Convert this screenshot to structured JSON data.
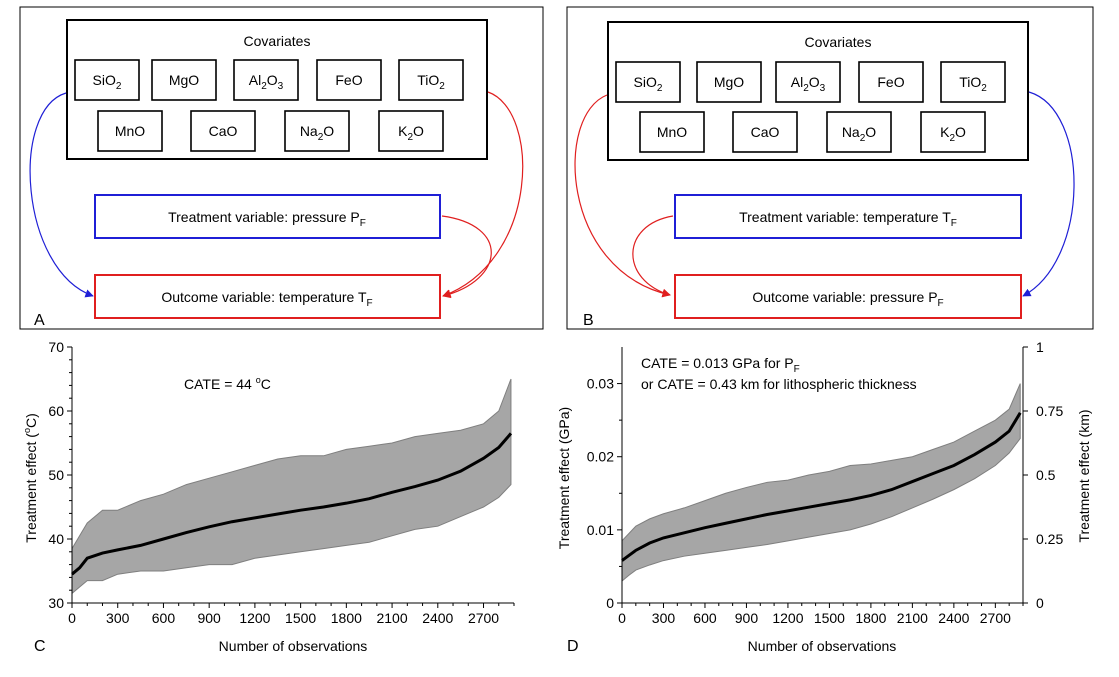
{
  "panel_a": {
    "letter": "A",
    "covariates_title": "Covariates",
    "covariates_row1": [
      {
        "base": "SiO",
        "sub": "2",
        "tail": ""
      },
      {
        "base": "MgO",
        "sub": "",
        "tail": ""
      },
      {
        "base": "Al",
        "sub": "2",
        "tail": "O",
        "sub2": "3"
      },
      {
        "base": "FeO",
        "sub": "",
        "tail": ""
      },
      {
        "base": "TiO",
        "sub": "2",
        "tail": ""
      }
    ],
    "covariates_row2": [
      {
        "base": "MnO",
        "sub": "",
        "tail": ""
      },
      {
        "base": "CaO",
        "sub": "",
        "tail": ""
      },
      {
        "base": "Na",
        "sub": "2",
        "tail": "O"
      },
      {
        "base": "K",
        "sub": "2",
        "tail": "O"
      }
    ],
    "treatment": {
      "text": "Treatment variable: pressure P",
      "sub": "F"
    },
    "outcome": {
      "text": "Outcome variable: temperature T",
      "sub": "F"
    }
  },
  "panel_b": {
    "letter": "B",
    "covariates_title": "Covariates",
    "treatment": {
      "text": "Treatment variable: temperature T",
      "sub": "F"
    },
    "outcome": {
      "text": "Outcome variable: pressure P",
      "sub": "F"
    }
  },
  "colors": {
    "blue": "#1f1fd6",
    "red": "#e01f1f",
    "band": "#a6a6a6",
    "band_edge": "#7f7f7f"
  },
  "chart_data": [
    {
      "type": "area",
      "panel_letter": "C",
      "annotation_prefix": "CATE = 44 ",
      "annotation_degree": "o",
      "annotation_unit": "C",
      "xlabel": "Number of observations",
      "ylabel_prefix": "Treatment effect (",
      "ylabel_degree": "o",
      "ylabel_suffix": "C)",
      "xlim": [
        0,
        2900
      ],
      "ylim": [
        30,
        70
      ],
      "xticks": [
        0,
        300,
        600,
        900,
        1200,
        1500,
        1800,
        2100,
        2400,
        2700
      ],
      "yticks": [
        30,
        40,
        50,
        60,
        70
      ],
      "series": [
        {
          "x": [
            0,
            50,
            100,
            200,
            300,
            450,
            600,
            750,
            900,
            1050,
            1200,
            1350,
            1500,
            1650,
            1800,
            1950,
            2100,
            2250,
            2400,
            2550,
            2700,
            2800,
            2880
          ],
          "values": [
            34.5,
            35.5,
            37,
            37.8,
            38.3,
            39,
            40,
            41,
            41.9,
            42.7,
            43.3,
            43.9,
            44.5,
            45.0,
            45.6,
            46.3,
            47.3,
            48.2,
            49.2,
            50.6,
            52.6,
            54.3,
            56.5
          ],
          "upper": [
            38.5,
            40.5,
            42.5,
            44.5,
            44.5,
            46,
            47,
            48.5,
            49.5,
            50.5,
            51.5,
            52.5,
            53,
            53,
            54,
            54.5,
            55,
            56,
            56.5,
            57,
            58,
            60,
            65
          ],
          "lower": [
            31.5,
            32.5,
            33.5,
            33.5,
            34.5,
            35,
            35,
            35.5,
            36,
            36,
            37,
            37.5,
            38,
            38.5,
            39,
            39.5,
            40.5,
            41.5,
            42,
            43.5,
            45,
            46.5,
            48.5
          ]
        }
      ]
    },
    {
      "type": "area",
      "panel_letter": "D",
      "annotation_line1_prefix": "CATE = 0.013 GPa for P",
      "annotation_line1_sub": "F",
      "annotation_line2": "or CATE = 0.43 km for lithospheric thickness",
      "xlabel": "Number of observations",
      "ylabel": "Treatment effect (GPa)",
      "ylabel_right": "Treatment effect (km)",
      "xlim": [
        0,
        2900
      ],
      "ylim": [
        0,
        0.035
      ],
      "ylim_right": [
        0,
        1
      ],
      "xticks": [
        0,
        300,
        600,
        900,
        1200,
        1500,
        1800,
        2100,
        2400,
        2700
      ],
      "yticks": [
        0,
        0.01,
        0.02,
        0.03
      ],
      "ytick_labels": [
        "0",
        "0.01",
        "0.02",
        "0.03"
      ],
      "yticks_right": [
        0,
        0.25,
        0.5,
        0.75,
        1
      ],
      "ytick_labels_right": [
        "0",
        "0.25",
        "0.5",
        "0.75",
        "1"
      ],
      "series": [
        {
          "x": [
            0,
            50,
            100,
            200,
            300,
            450,
            600,
            750,
            900,
            1050,
            1200,
            1350,
            1500,
            1650,
            1800,
            1950,
            2100,
            2250,
            2400,
            2550,
            2700,
            2800,
            2880
          ],
          "values": [
            0.0058,
            0.0065,
            0.0072,
            0.0082,
            0.0089,
            0.0096,
            0.0103,
            0.0109,
            0.0115,
            0.0121,
            0.0126,
            0.0131,
            0.0136,
            0.0141,
            0.0147,
            0.0155,
            0.0166,
            0.0177,
            0.0188,
            0.0203,
            0.022,
            0.0235,
            0.026
          ],
          "upper": [
            0.0085,
            0.0095,
            0.0105,
            0.0115,
            0.0122,
            0.013,
            0.014,
            0.015,
            0.0158,
            0.0165,
            0.0168,
            0.0175,
            0.018,
            0.0188,
            0.019,
            0.0195,
            0.02,
            0.021,
            0.022,
            0.0235,
            0.025,
            0.0265,
            0.03
          ],
          "lower": [
            0.003,
            0.0038,
            0.0045,
            0.0052,
            0.0058,
            0.0064,
            0.0068,
            0.0072,
            0.0076,
            0.008,
            0.0085,
            0.009,
            0.0095,
            0.01,
            0.0108,
            0.0118,
            0.013,
            0.0142,
            0.0155,
            0.017,
            0.0188,
            0.0205,
            0.0225
          ]
        }
      ]
    }
  ]
}
